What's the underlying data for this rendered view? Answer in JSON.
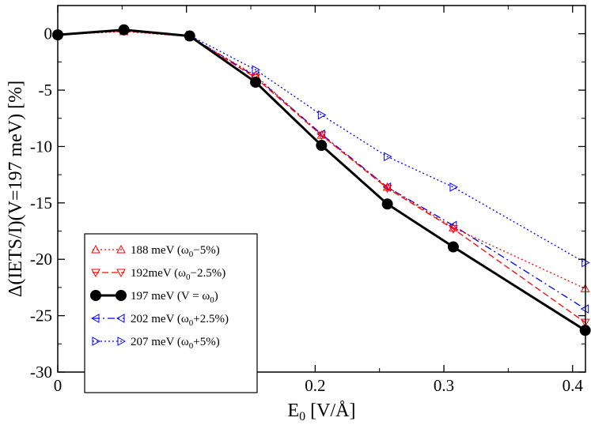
{
  "chart_data": {
    "type": "line",
    "title": "",
    "xlabel": "E₀ [V/Å]",
    "ylabel": "Δ(IETS/I)(V=197 meV) [%]",
    "xlim": [
      0,
      0.41
    ],
    "ylim": [
      -30,
      2.5
    ],
    "x_ticks": [
      0,
      0.1,
      0.2,
      0.3,
      0.4
    ],
    "x_tick_labels": [
      "0",
      "0.1",
      "0.2",
      "0.3",
      "0.4"
    ],
    "y_ticks": [
      0,
      -5,
      -10,
      -15,
      -20,
      -25,
      -30
    ],
    "y_tick_labels": [
      "0",
      "-5",
      "-10",
      "-15",
      "-20",
      "-25",
      "-30"
    ],
    "grid": false,
    "legend_position": "bottom-left",
    "series": [
      {
        "name": "188 meV (ω0−5%)",
        "label_main": "188 meV (ω",
        "label_sub": "0",
        "label_tail": "−5%)",
        "color": "#ff0000",
        "dash": "dotted",
        "marker": "triangle-up",
        "x": [
          0,
          0.0514,
          0.1025,
          0.1537,
          0.2049,
          0.2561,
          0.3073,
          0.4098
        ],
        "y": [
          -0.1,
          0.2,
          -0.25,
          -3.7,
          -9.0,
          -13.6,
          -17.2,
          -22.6
        ]
      },
      {
        "name": "192meV (ω0−2.5%)",
        "label_main": "192meV (ω",
        "label_sub": "0",
        "label_tail": "−2.5%)",
        "color": "#ff0000",
        "dash": "dashed",
        "marker": "triangle-down",
        "x": [
          0,
          0.0514,
          0.1025,
          0.1537,
          0.2049,
          0.2561,
          0.3073,
          0.4098
        ],
        "y": [
          -0.1,
          0.25,
          -0.25,
          -3.9,
          -9.0,
          -13.7,
          -17.3,
          -25.6
        ]
      },
      {
        "name": "197 meV (V = ω0)",
        "label_main": "197 meV (V = ω",
        "label_sub": "0",
        "label_tail": ")",
        "color": "#000000",
        "dash": "solid",
        "marker": "circle",
        "x": [
          0,
          0.0514,
          0.1025,
          0.1537,
          0.2049,
          0.2561,
          0.3073,
          0.4098
        ],
        "y": [
          -0.1,
          0.35,
          -0.2,
          -4.3,
          -9.9,
          -15.1,
          -18.9,
          -26.3
        ]
      },
      {
        "name": "202 meV (ω0+2.5%)",
        "label_main": "202 meV (ω",
        "label_sub": "0",
        "label_tail": "+2.5%)",
        "color": "#0000ff",
        "dash": "dashdot",
        "marker": "triangle-left",
        "x": [
          0,
          0.0514,
          0.1025,
          0.1537,
          0.2049,
          0.2561,
          0.3073,
          0.4098
        ],
        "y": [
          -0.1,
          0.3,
          -0.2,
          -3.8,
          -8.9,
          -13.6,
          -17.0,
          -24.4
        ]
      },
      {
        "name": "207 meV (ω0+5%)",
        "label_main": "207 meV (ω",
        "label_sub": "0",
        "label_tail": "+5%)",
        "color": "#0000ff",
        "dash": "dotted",
        "marker": "triangle-right",
        "x": [
          0,
          0.0514,
          0.1025,
          0.1537,
          0.2049,
          0.2561,
          0.3073,
          0.4098
        ],
        "y": [
          -0.1,
          0.3,
          -0.15,
          -3.2,
          -7.2,
          -10.9,
          -13.6,
          -20.3
        ]
      }
    ]
  }
}
